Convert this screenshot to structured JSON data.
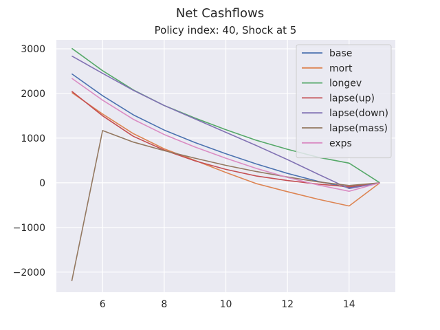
{
  "chart_data": {
    "type": "line",
    "title": "Net Cashflows",
    "subtitle": "Policy index: 40, Shock at 5",
    "xlabel": "",
    "ylabel": "",
    "xlim": [
      4.5,
      15.5
    ],
    "ylim": [
      -2450,
      3200
    ],
    "xticks": [
      6,
      8,
      10,
      12,
      14
    ],
    "yticks": [
      -2000,
      -1000,
      0,
      1000,
      2000,
      3000
    ],
    "ytick_labels": [
      "−2000",
      "−1000",
      "0",
      "1000",
      "2000",
      "3000"
    ],
    "grid": true,
    "legend_position": "top-right",
    "x": [
      5,
      6,
      7,
      8,
      9,
      10,
      11,
      12,
      13,
      14,
      15
    ],
    "series": [
      {
        "name": "base",
        "color": "#4c72b0",
        "values": [
          2440,
          1950,
          1520,
          1180,
          900,
          650,
          420,
          210,
          30,
          -110,
          0
        ]
      },
      {
        "name": "mort",
        "color": "#dd8452",
        "values": [
          2020,
          1540,
          1100,
          760,
          500,
          230,
          -20,
          -200,
          -370,
          -520,
          0
        ]
      },
      {
        "name": "longev",
        "color": "#55a868",
        "values": [
          3010,
          2510,
          2080,
          1730,
          1450,
          1190,
          950,
          750,
          570,
          440,
          0
        ]
      },
      {
        "name": "lapse(up)",
        "color": "#c44e52",
        "values": [
          2050,
          1500,
          1040,
          730,
          490,
          300,
          150,
          50,
          -30,
          -90,
          0
        ]
      },
      {
        "name": "lapse(down)",
        "color": "#8172b3",
        "values": [
          2840,
          2450,
          2070,
          1730,
          1430,
          1130,
          830,
          520,
          190,
          -130,
          0
        ]
      },
      {
        "name": "lapse(mass)",
        "color": "#937860",
        "values": [
          -2200,
          1170,
          910,
          720,
          550,
          390,
          250,
          130,
          20,
          -60,
          0
        ]
      },
      {
        "name": "exps",
        "color": "#da8bc3",
        "values": [
          2340,
          1850,
          1420,
          1080,
          800,
          550,
          320,
          120,
          -50,
          -190,
          0
        ]
      }
    ]
  }
}
